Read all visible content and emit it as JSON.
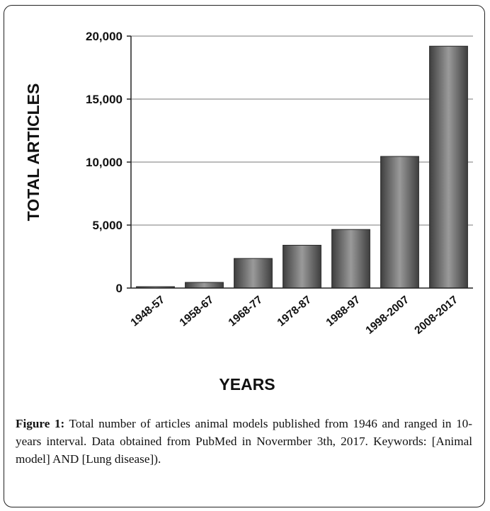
{
  "chart_data": {
    "type": "bar",
    "categories": [
      "1948-57",
      "1958-67",
      "1968-77",
      "1978-87",
      "1988-97",
      "1998-2007",
      "2008-2017"
    ],
    "values": [
      100,
      450,
      2350,
      3400,
      4650,
      10450,
      19200
    ],
    "xlabel": "YEARS",
    "ylabel": "TOTAL ARTICLES",
    "ylim": [
      0,
      20000
    ],
    "yticks": [
      0,
      5000,
      10000,
      15000,
      20000
    ],
    "ytick_labels": [
      "0",
      "5,000",
      "10,000",
      "15,000",
      "20,000"
    ],
    "grid": true,
    "legend": "none",
    "colors": {
      "bar_light": "#9a9a9a",
      "bar_mid": "#6e6e6e",
      "bar_dark": "#3e3e3e",
      "bar_edge": "#2a2a2a",
      "grid": "#7a7a7a",
      "axis": "#222222"
    }
  },
  "caption": {
    "label": "Figure 1:",
    "text": " Total number of articles animal models published from 1946 and ranged in 10-years interval. Data obtained from PubMed in Novermber 3th, 2017. Keywords: [Animal model] AND [Lung disease])."
  }
}
